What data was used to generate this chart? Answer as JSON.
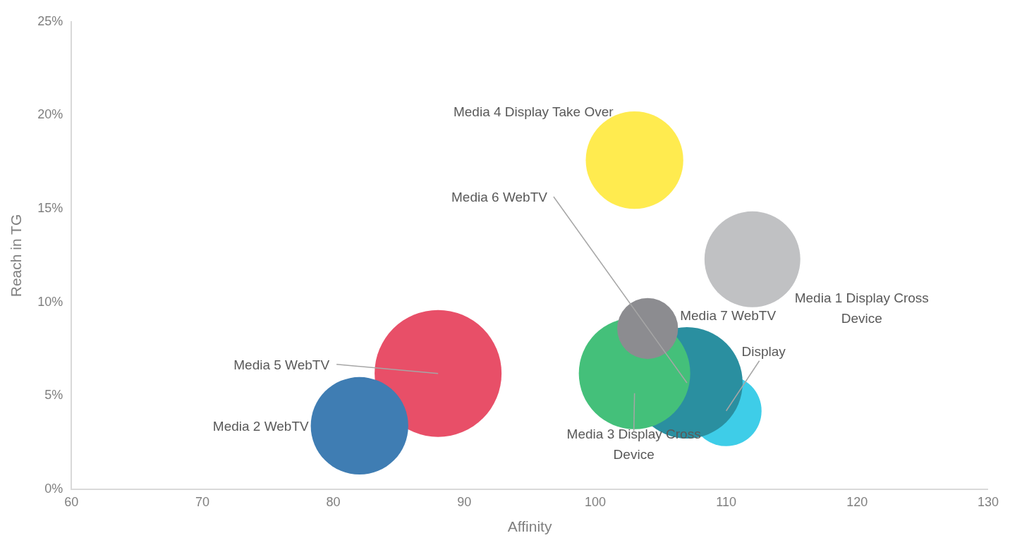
{
  "chart_data": {
    "type": "bubble",
    "xlabel": "Affinity",
    "ylabel": "Reach in TG",
    "xlim": [
      60,
      130
    ],
    "xticks": [
      60,
      70,
      80,
      90,
      100,
      110,
      120,
      130
    ],
    "ylim": [
      0,
      25
    ],
    "yticks": [
      {
        "value": 0,
        "label": "0%"
      },
      {
        "value": 5,
        "label": "5%"
      },
      {
        "value": 10,
        "label": "10%"
      },
      {
        "value": 15,
        "label": "15%"
      },
      {
        "value": 20,
        "label": "20%"
      },
      {
        "value": 25,
        "label": "25%"
      }
    ],
    "grid": false,
    "legend": false,
    "series": [
      {
        "name": "Media 2 WebTV",
        "color": "#3f7db3",
        "x": [
          82
        ],
        "values": [
          3.4
        ],
        "sizes": [
          0.59
        ]
      },
      {
        "name": "Media 5 WebTV",
        "color": "#e84f68",
        "x": [
          88
        ],
        "values": [
          6.2
        ],
        "sizes": [
          1
        ]
      },
      {
        "name": "Media 4 Display Take Over",
        "color": "#ffeb4f",
        "x": [
          103
        ],
        "values": [
          17.6
        ],
        "sizes": [
          0.59
        ]
      },
      {
        "name": "Media 1 Display Cross Device",
        "color": "#c0c1c3",
        "x": [
          112
        ],
        "values": [
          12.3
        ],
        "sizes": [
          0.57
        ]
      },
      {
        "name": "Media 7 WebTV",
        "color": "#8c8c90",
        "x": [
          104
        ],
        "values": [
          8.6
        ],
        "sizes": [
          0.23
        ]
      },
      {
        "name": "Media 3 Display Cross Device",
        "color": "#44c07a",
        "x": [
          103
        ],
        "values": [
          6.2
        ],
        "sizes": [
          0.77
        ]
      },
      {
        "name": "Media 6 WebTV",
        "color": "#2a8fa0",
        "x": [
          107
        ],
        "values": [
          5.7
        ],
        "sizes": [
          0.77
        ]
      },
      {
        "name": "Display",
        "color": "#3ecde8",
        "x": [
          110
        ],
        "values": [
          4.2
        ],
        "sizes": [
          0.31
        ]
      }
    ]
  }
}
